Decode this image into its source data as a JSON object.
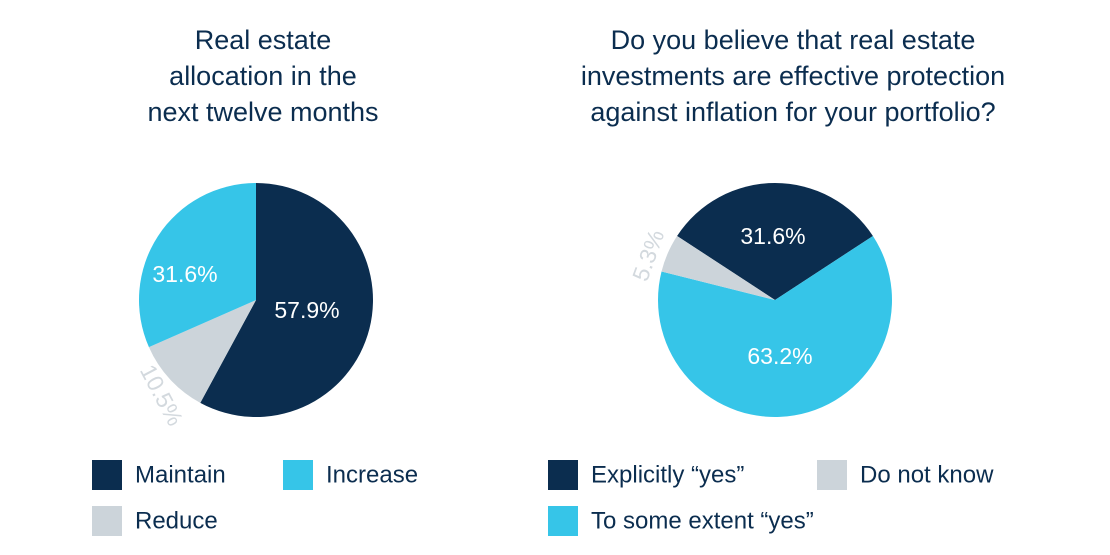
{
  "chart_data": [
    {
      "type": "pie",
      "title": [
        "Real estate",
        "allocation in the",
        "next twelve months"
      ],
      "categories": [
        "Maintain",
        "Reduce",
        "Increase"
      ],
      "values": [
        57.9,
        10.5,
        31.6
      ],
      "value_labels": [
        "57.9%",
        "10.5%",
        "31.6%"
      ],
      "colors": [
        "#0b2d4f",
        "#ccd4da",
        "#36c5e8"
      ]
    },
    {
      "type": "pie",
      "title": [
        "Do you believe that real estate",
        "investments are effective protection",
        "against inflation for your portfolio?"
      ],
      "categories": [
        "Explicitly “yes”",
        "To some extent “yes”",
        "Do not know"
      ],
      "values": [
        31.6,
        63.2,
        5.3
      ],
      "value_labels": [
        "31.6%",
        "63.2%",
        "5.3%"
      ],
      "colors": [
        "#0b2d4f",
        "#36c5e8",
        "#ccd4da"
      ]
    }
  ]
}
